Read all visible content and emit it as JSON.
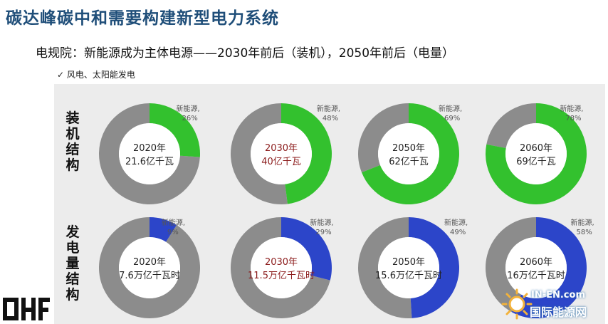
{
  "header": {
    "title": "碳达峰碳中和需要构建新型电力系统",
    "subtitle": "电规院：新能源成为主体电源——2030年前后（装机），2050年前后（电量）",
    "bullet": "✓ 风电、太阳能发电"
  },
  "watermark": {
    "text": "国际能源网",
    "brand": "IN-EN.com"
  },
  "colors": {
    "installed_new": "#33c12e",
    "generation_new": "#2c45c9",
    "other": "#8c8c8c",
    "panel_bg": "#ececec",
    "title": "#1f4e79",
    "center_text": "#222222",
    "center_text_highlight": "#8b1a1a"
  },
  "chart_data": [
    {
      "type": "pie",
      "row_label": "装机结构",
      "slice_label": "新能源",
      "charts": [
        {
          "year": "2020年",
          "total": "21.6亿千瓦",
          "new_energy_pct": 26,
          "label": "26%",
          "highlight": false
        },
        {
          "year": "2030年",
          "total": "40亿千瓦",
          "new_energy_pct": 48,
          "label": "48%",
          "highlight": true
        },
        {
          "year": "2050年",
          "total": "62亿千瓦",
          "new_energy_pct": 69,
          "label": "69%",
          "highlight": false
        },
        {
          "year": "2060年",
          "total": "69亿千瓦",
          "new_energy_pct": 78,
          "label": "78%",
          "highlight": false
        }
      ]
    },
    {
      "type": "pie",
      "row_label": "发电量结构",
      "slice_label": "新能源",
      "charts": [
        {
          "year": "2020年",
          "total": "7.6万亿千瓦时",
          "new_energy_pct": 9,
          "label": "9%",
          "highlight": false
        },
        {
          "year": "2030年",
          "total": "11.5万亿千瓦时",
          "new_energy_pct": 29,
          "label": "29%",
          "highlight": true
        },
        {
          "year": "2050年",
          "total": "15.6万亿千瓦时",
          "new_energy_pct": 49,
          "label": "49%",
          "highlight": false
        },
        {
          "year": "2060年",
          "total": "16万亿千瓦时",
          "new_energy_pct": 58,
          "label": "58%",
          "highlight": false
        }
      ]
    }
  ]
}
